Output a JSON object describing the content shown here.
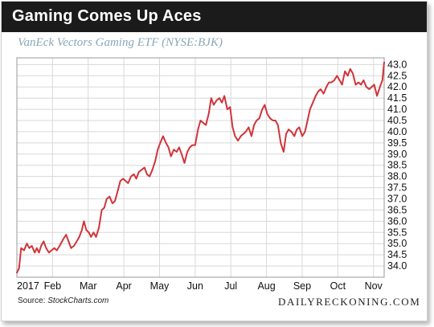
{
  "header": {
    "title": "Gaming Comes Up Aces"
  },
  "source": {
    "label": "Source: ",
    "name": "StockCharts.com"
  },
  "brand": "DAILYRECKONING.COM",
  "chart_data": {
    "type": "line",
    "title": "VanEck Vectors Gaming ETF (NYSE:BJK)",
    "xlabel": "",
    "ylabel": "",
    "ylim": [
      33.5,
      43.3
    ],
    "xlim": [
      0,
      10.3
    ],
    "grid": true,
    "legend": "none",
    "line_color": "#d0343a",
    "yticks": [
      34.0,
      34.5,
      35.0,
      35.5,
      36.0,
      36.5,
      37.0,
      37.5,
      38.0,
      38.5,
      39.0,
      39.5,
      40.0,
      40.5,
      41.0,
      41.5,
      42.0,
      42.5,
      43.0
    ],
    "ytick_labels": [
      "34.0",
      "34.5",
      "35.0",
      "35.5",
      "36.0",
      "36.5",
      "37.0",
      "37.5",
      "38.0",
      "38.5",
      "39.0",
      "39.5",
      "40.0",
      "40.5",
      "41.0",
      "41.5",
      "42.0",
      "42.5",
      "43.0"
    ],
    "xticks": [
      0,
      1,
      2,
      3,
      4,
      5,
      6,
      7,
      8,
      9,
      10
    ],
    "xtick_labels": [
      "2017",
      "Feb",
      "Mar",
      "Apr",
      "May",
      "Jun",
      "Jul",
      "Aug",
      "Sep",
      "Oct",
      "Nov"
    ],
    "series": [
      {
        "x": [
          0,
          0.06,
          0.12,
          0.2,
          0.28,
          0.35,
          0.42,
          0.5,
          0.56,
          0.62,
          0.68,
          0.75,
          0.82,
          0.9,
          0.97,
          1.05,
          1.12,
          1.2,
          1.3,
          1.38,
          1.45,
          1.52,
          1.6,
          1.68,
          1.75,
          1.82,
          1.88,
          1.95,
          2.02,
          2.08,
          2.15,
          2.22,
          2.3,
          2.38,
          2.45,
          2.52,
          2.6,
          2.68,
          2.75,
          2.82,
          2.9,
          2.98,
          3.05,
          3.12,
          3.2,
          3.28,
          3.35,
          3.42,
          3.5,
          3.58,
          3.65,
          3.72,
          3.8,
          3.88,
          3.95,
          4.02,
          4.1,
          4.18,
          4.25,
          4.32,
          4.4,
          4.48,
          4.55,
          4.62,
          4.7,
          4.78,
          4.85,
          4.92,
          5.0,
          5.08,
          5.15,
          5.22,
          5.3,
          5.38,
          5.45,
          5.52,
          5.6,
          5.68,
          5.75,
          5.82,
          5.9,
          5.98,
          6.05,
          6.12,
          6.2,
          6.28,
          6.35,
          6.42,
          6.5,
          6.58,
          6.65,
          6.72,
          6.8,
          6.88,
          6.95,
          7.02,
          7.1,
          7.18,
          7.25,
          7.32,
          7.4,
          7.48,
          7.55,
          7.62,
          7.7,
          7.78,
          7.85,
          7.92,
          8.0,
          8.08,
          8.15,
          8.22,
          8.3,
          8.38,
          8.45,
          8.52,
          8.6,
          8.68,
          8.75,
          8.82,
          8.9,
          8.98,
          9.05,
          9.12,
          9.2,
          9.28,
          9.35,
          9.42,
          9.5,
          9.58,
          9.65,
          9.72,
          9.8,
          9.88,
          9.95,
          10.02,
          10.1,
          10.18,
          10.25,
          10.3
        ],
        "y": [
          33.7,
          33.9,
          34.8,
          34.7,
          35.0,
          34.8,
          34.9,
          34.6,
          34.8,
          34.6,
          34.9,
          35.1,
          34.8,
          34.6,
          34.7,
          34.8,
          34.7,
          34.9,
          35.2,
          35.4,
          35.1,
          34.8,
          34.9,
          35.1,
          35.3,
          35.6,
          36.0,
          35.6,
          35.5,
          35.3,
          35.5,
          35.3,
          35.7,
          36.5,
          36.6,
          37.0,
          37.1,
          36.8,
          36.9,
          37.3,
          37.8,
          37.9,
          37.8,
          37.7,
          38.0,
          38.1,
          37.9,
          38.2,
          38.3,
          38.4,
          38.1,
          38.0,
          38.3,
          38.7,
          39.2,
          39.5,
          39.8,
          39.5,
          39.3,
          38.9,
          39.2,
          39.1,
          39.3,
          39.0,
          38.6,
          39.1,
          39.3,
          39.4,
          39.4,
          40.1,
          40.5,
          40.4,
          40.3,
          40.8,
          41.5,
          41.2,
          41.4,
          41.5,
          41.3,
          41.6,
          41.0,
          41.1,
          40.2,
          39.8,
          39.6,
          39.8,
          39.9,
          40.0,
          40.2,
          39.8,
          40.3,
          40.5,
          40.6,
          41.0,
          41.2,
          40.8,
          40.6,
          40.5,
          40.5,
          40.3,
          39.5,
          39.1,
          39.9,
          40.1,
          40.0,
          39.8,
          40.1,
          40.2,
          39.8,
          40.0,
          40.5,
          41.0,
          41.3,
          41.6,
          41.8,
          41.9,
          41.7,
          42.0,
          42.2,
          42.2,
          42.3,
          42.5,
          42.3,
          42.1,
          42.7,
          42.5,
          42.8,
          42.6,
          42.1,
          42.2,
          42.1,
          42.3,
          42.0,
          41.9,
          42.0,
          42.1,
          41.6,
          42.0,
          42.3,
          43.1
        ]
      }
    ]
  }
}
